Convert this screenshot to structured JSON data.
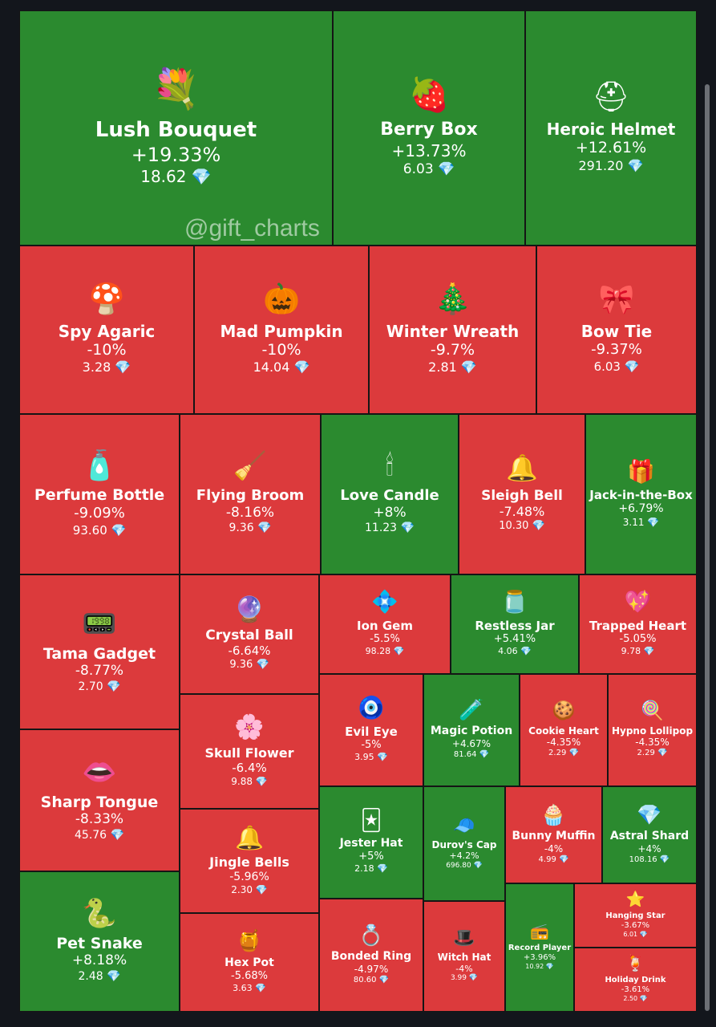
{
  "watermark": "@gift_charts",
  "colors": {
    "up": "#2b8a2f",
    "down": "#dc3a3c",
    "background": "#13161c"
  },
  "currency_icon": "💎",
  "chart_data": {
    "type": "treemap",
    "cells": [
      {
        "name": "Lush Bouquet",
        "change": "+19.33%",
        "price": "18.62",
        "direction": "up",
        "icon": "💐"
      },
      {
        "name": "Berry Box",
        "change": "+13.73%",
        "price": "6.03",
        "direction": "up",
        "icon": "🍓"
      },
      {
        "name": "Heroic Helmet",
        "change": "+12.61%",
        "price": "291.20",
        "direction": "up",
        "icon": "⛑"
      },
      {
        "name": "Spy Agaric",
        "change": "-10%",
        "price": "3.28",
        "direction": "down",
        "icon": "🍄"
      },
      {
        "name": "Mad Pumpkin",
        "change": "-10%",
        "price": "14.04",
        "direction": "down",
        "icon": "🎃"
      },
      {
        "name": "Winter Wreath",
        "change": "-9.7%",
        "price": "2.81",
        "direction": "down",
        "icon": "🎄"
      },
      {
        "name": "Bow Tie",
        "change": "-9.37%",
        "price": "6.03",
        "direction": "down",
        "icon": "🎀"
      },
      {
        "name": "Perfume Bottle",
        "change": "-9.09%",
        "price": "93.60",
        "direction": "down",
        "icon": "🧴"
      },
      {
        "name": "Flying Broom",
        "change": "-8.16%",
        "price": "9.36",
        "direction": "down",
        "icon": "🧹"
      },
      {
        "name": "Love Candle",
        "change": "+8%",
        "price": "11.23",
        "direction": "up",
        "icon": "🕯"
      },
      {
        "name": "Sleigh Bell",
        "change": "-7.48%",
        "price": "10.30",
        "direction": "down",
        "icon": "🔔"
      },
      {
        "name": "Jack-in-the-Box",
        "change": "+6.79%",
        "price": "3.11",
        "direction": "up",
        "icon": "🎁"
      },
      {
        "name": "Tama Gadget",
        "change": "-8.77%",
        "price": "2.70",
        "direction": "down",
        "icon": "📟"
      },
      {
        "name": "Crystal Ball",
        "change": "-6.64%",
        "price": "9.36",
        "direction": "down",
        "icon": "🔮"
      },
      {
        "name": "Ion Gem",
        "change": "-5.5%",
        "price": "98.28",
        "direction": "down",
        "icon": "💠"
      },
      {
        "name": "Restless Jar",
        "change": "+5.41%",
        "price": "4.06",
        "direction": "up",
        "icon": "🫙"
      },
      {
        "name": "Trapped Heart",
        "change": "-5.05%",
        "price": "9.78",
        "direction": "down",
        "icon": "💖"
      },
      {
        "name": "Skull Flower",
        "change": "-6.4%",
        "price": "9.88",
        "direction": "down",
        "icon": "🌸"
      },
      {
        "name": "Evil Eye",
        "change": "-5%",
        "price": "3.95",
        "direction": "down",
        "icon": "🧿"
      },
      {
        "name": "Magic Potion",
        "change": "+4.67%",
        "price": "81.64",
        "direction": "up",
        "icon": "🧪"
      },
      {
        "name": "Cookie Heart",
        "change": "-4.35%",
        "price": "2.29",
        "direction": "down",
        "icon": "🍪"
      },
      {
        "name": "Hypno Lollipop",
        "change": "-4.35%",
        "price": "2.29",
        "direction": "down",
        "icon": "🍭"
      },
      {
        "name": "Sharp Tongue",
        "change": "-8.33%",
        "price": "45.76",
        "direction": "down",
        "icon": "👄"
      },
      {
        "name": "Jingle Bells",
        "change": "-5.96%",
        "price": "2.30",
        "direction": "down",
        "icon": "🔔"
      },
      {
        "name": "Jester Hat",
        "change": "+5%",
        "price": "2.18",
        "direction": "up",
        "icon": "🃏"
      },
      {
        "name": "Durov's Cap",
        "change": "+4.2%",
        "price": "696.80",
        "direction": "up",
        "icon": "🧢"
      },
      {
        "name": "Bunny Muffin",
        "change": "-4%",
        "price": "4.99",
        "direction": "down",
        "icon": "🧁"
      },
      {
        "name": "Astral Shard",
        "change": "+4%",
        "price": "108.16",
        "direction": "up",
        "icon": "💎"
      },
      {
        "name": "Pet Snake",
        "change": "+8.18%",
        "price": "2.48",
        "direction": "up",
        "icon": "🐍"
      },
      {
        "name": "Hex Pot",
        "change": "-5.68%",
        "price": "3.63",
        "direction": "down",
        "icon": "🍯"
      },
      {
        "name": "Bonded Ring",
        "change": "-4.97%",
        "price": "80.60",
        "direction": "down",
        "icon": "💍"
      },
      {
        "name": "Witch Hat",
        "change": "-4%",
        "price": "3.99",
        "direction": "down",
        "icon": "🎩"
      },
      {
        "name": "Record Player",
        "change": "+3.96%",
        "price": "10.92",
        "direction": "up",
        "icon": "📻"
      },
      {
        "name": "Hanging Star",
        "change": "-3.67%",
        "price": "6.01",
        "direction": "down",
        "icon": "⭐"
      },
      {
        "name": "Holiday Drink",
        "change": "-3.61%",
        "price": "2.50",
        "direction": "down",
        "icon": "🍹"
      }
    ]
  }
}
